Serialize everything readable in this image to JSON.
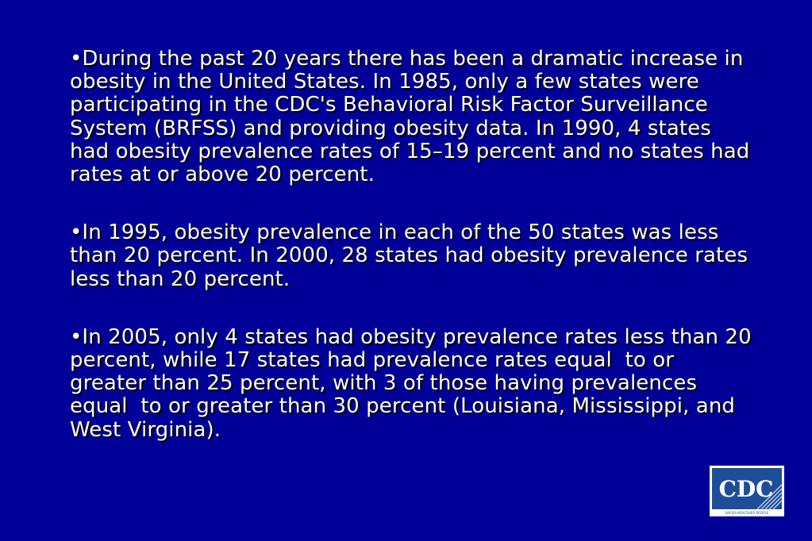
{
  "slide": {
    "bullets": [
      "•During the past 20 years there has been a dramatic increase in obesity in the United States. In 1985, only a few states were participating in the CDC's Behavioral Risk Factor Surveillance System (BRFSS) and providing obesity data. In 1990, 4 states had obesity prevalence rates of 15–19 percent and no states had rates at or above 20 percent.",
      "•In 1995, obesity prevalence in each of the 50 states was less than 20 percent. In 2000, 28 states had obesity prevalence rates less than 20 percent.",
      "•In 2005, only 4 states had obesity prevalence rates less than 20 percent, while 17 states had prevalence rates equal  to or greater than 25 percent, with 3 of those having prevalences equal  to or greater than 30 percent (Louisiana, Mississippi, and West Virginia)."
    ]
  },
  "logo": {
    "text": "CDC",
    "tagline": "SAFER·HEALTHIER·PEOPLE"
  },
  "colors": {
    "background": "#000099",
    "text": "#ffffff",
    "shadow": "#000000",
    "logo_blue": "#1f4e99"
  }
}
